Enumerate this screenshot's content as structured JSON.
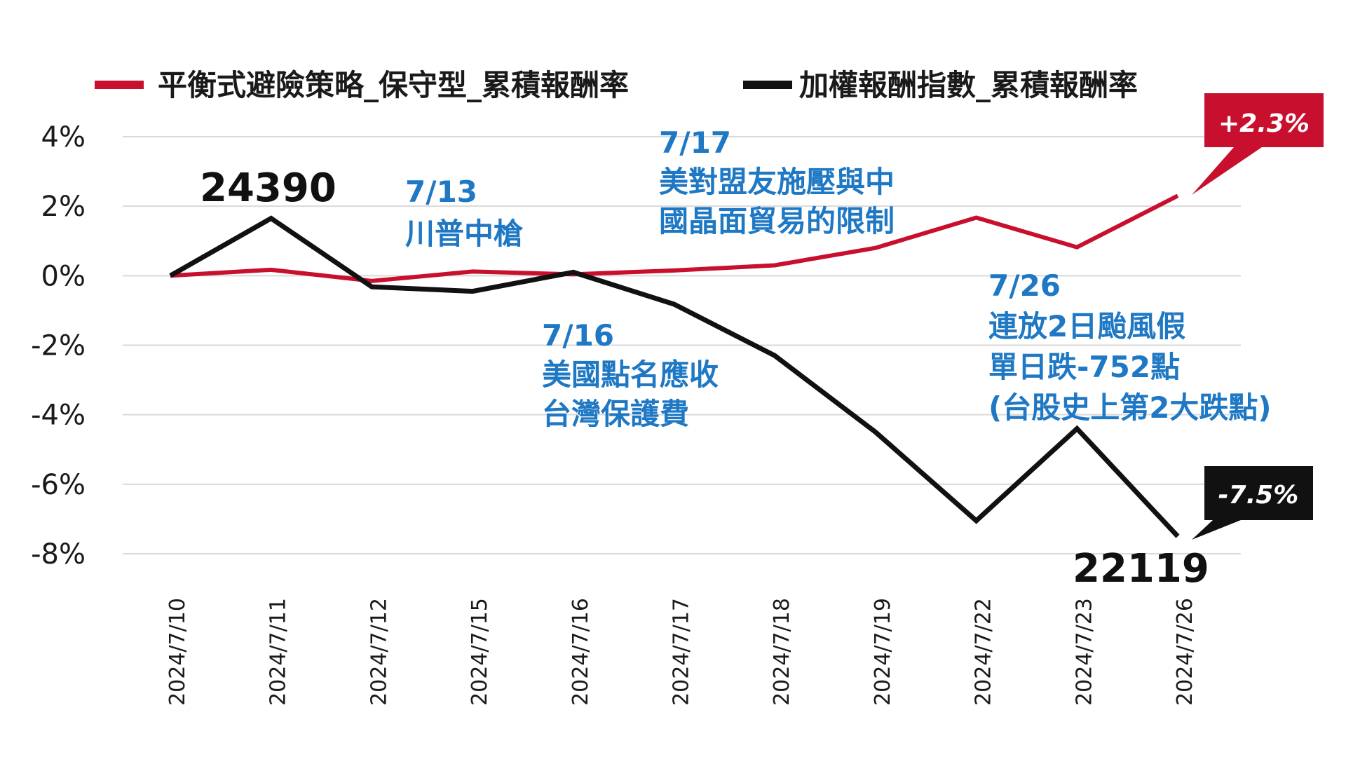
{
  "chart_data": {
    "type": "line",
    "x": [
      "2024/7/10",
      "2024/7/11",
      "2024/7/12",
      "2024/7/15",
      "2024/7/16",
      "2024/7/17",
      "2024/7/18",
      "2024/7/19",
      "2024/7/22",
      "2024/7/23",
      "2024/7/26"
    ],
    "series": [
      {
        "name": "平衡式避險策略_保守型_累積報酬率",
        "color": "#c8102e",
        "values": [
          0.0,
          0.17,
          -0.15,
          0.12,
          0.04,
          0.15,
          0.3,
          0.8,
          1.67,
          0.82,
          2.3
        ]
      },
      {
        "name": "加權報酬指數_累積報酬率",
        "color": "#111111",
        "values": [
          0.0,
          1.65,
          -0.32,
          -0.45,
          0.1,
          -0.82,
          -2.3,
          -4.5,
          -7.05,
          -4.4,
          -7.5
        ]
      }
    ],
    "yticks": [
      "4%",
      "2%",
      "0%",
      "-2%",
      "-4%",
      "-6%",
      "-8%"
    ],
    "ylim": [
      -8,
      4
    ],
    "grid": true,
    "legend_position": "top",
    "annotations": [
      {
        "lines": [
          "7/13",
          "川普中槍"
        ]
      },
      {
        "lines": [
          "7/17",
          "美對盟友施壓與中",
          "國晶面貿易的限制"
        ]
      },
      {
        "lines": [
          "7/16",
          "美國點名應收",
          "台灣保護費"
        ]
      },
      {
        "lines": [
          "7/26",
          "連放2日颱風假",
          "單日跌-752點",
          "(台股史上第2大跌點)"
        ]
      }
    ],
    "index_high_label": "24390",
    "index_low_label": "22119",
    "callout_red": "+2.3%",
    "callout_black": "-7.5%"
  }
}
